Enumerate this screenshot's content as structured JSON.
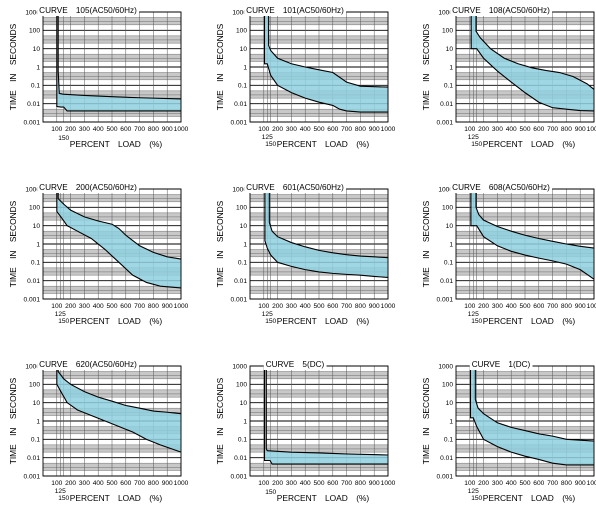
{
  "style": {
    "band_fill": "#8fd0df",
    "curve_color": "#000000",
    "grid_major": "#000000",
    "grid_minor": "#555555",
    "gray_band": "#c8c8c8"
  },
  "chart_data": [
    {
      "type": "area",
      "title": "CURVE　105(AC50/60Hz)",
      "xlabel": "PERCENT　LOAD　(%)",
      "ylabel": "TIME　IN　SECONDS",
      "yscale": "log",
      "xlim": [
        0,
        1000
      ],
      "ylim": [
        0.001,
        1000
      ],
      "x_ticks": [
        "100",
        "200",
        "300",
        "400",
        "500",
        "600",
        "700",
        "800",
        "900",
        "1000"
      ],
      "x_ticks_extra": [
        "150"
      ],
      "y_ticks": [
        "1000",
        "100",
        "10",
        "1",
        "0.1",
        "0.01",
        "0.001"
      ],
      "grid": true,
      "series": [
        {
          "role": "upper",
          "x": [
            110,
            110,
            118,
            145,
            300,
            500,
            700,
            1000
          ],
          "y": [
            1000,
            0.6,
            0.036,
            0.033,
            0.028,
            0.024,
            0.021,
            0.018
          ]
        },
        {
          "role": "lower",
          "x": [
            100,
            100,
            130,
            150,
            175,
            300,
            1000
          ],
          "y": [
            1000,
            0.007,
            0.0065,
            0.0065,
            0.004,
            0.004,
            0.004
          ]
        }
      ]
    },
    {
      "type": "area",
      "title": "CURVE　101(AC50/60Hz)",
      "xlabel": "PERCENT　LOAD　(%)",
      "ylabel": "TIME　IN　SECONDS",
      "yscale": "log",
      "xlim": [
        0,
        1000
      ],
      "ylim": [
        0.001,
        1000
      ],
      "x_ticks": [
        "100",
        "200",
        "300",
        "400",
        "500",
        "600",
        "700",
        "800",
        "900",
        "1000"
      ],
      "x_ticks_extra": [
        "125",
        "150"
      ],
      "y_ticks": [
        "1000",
        "100",
        "10",
        "1",
        "0.1",
        "0.01",
        "0.001"
      ],
      "grid": true,
      "series": [
        {
          "role": "upper",
          "x": [
            135,
            135,
            150,
            200,
            300,
            400,
            500,
            600,
            700,
            800,
            1000
          ],
          "y": [
            1000,
            15,
            8,
            3,
            1.5,
            1.0,
            0.7,
            0.5,
            0.15,
            0.09,
            0.08
          ]
        },
        {
          "role": "lower",
          "x": [
            105,
            105,
            125,
            150,
            200,
            300,
            400,
            500,
            600,
            650,
            700,
            800,
            1000
          ],
          "y": [
            1000,
            1.5,
            1.5,
            0.35,
            0.1,
            0.04,
            0.02,
            0.012,
            0.008,
            0.005,
            0.004,
            0.0035,
            0.0035
          ]
        }
      ]
    },
    {
      "type": "area",
      "title": "CURVE　108(AC50/60Hz)",
      "xlabel": "PERCENT　LOAD　(%)",
      "ylabel": "TIME　IN　SECONDS",
      "yscale": "log",
      "xlim": [
        0,
        1000
      ],
      "ylim": [
        0.001,
        1000
      ],
      "x_ticks": [
        "100",
        "200",
        "300",
        "400",
        "500",
        "600",
        "700",
        "800",
        "900",
        "1000"
      ],
      "x_ticks_extra": [
        "125",
        "150"
      ],
      "y_ticks": [
        "1000",
        "100",
        "10",
        "1",
        "0.1",
        "0.01",
        "0.001"
      ],
      "grid": true,
      "series": [
        {
          "role": "upper",
          "x": [
            145,
            145,
            175,
            250,
            350,
            450,
            550,
            650,
            750,
            850,
            950,
            1000
          ],
          "y": [
            1000,
            90,
            40,
            10,
            3,
            1.5,
            0.9,
            0.65,
            0.5,
            0.3,
            0.12,
            0.06
          ]
        },
        {
          "role": "lower",
          "x": [
            110,
            110,
            150,
            200,
            300,
            400,
            500,
            600,
            700,
            800,
            900,
            1000
          ],
          "y": [
            1000,
            10,
            10,
            3,
            0.6,
            0.15,
            0.04,
            0.012,
            0.006,
            0.005,
            0.0042,
            0.004
          ]
        }
      ]
    },
    {
      "type": "area",
      "title": "CURVE　200(AC50/60Hz)",
      "xlabel": "PERCENT　LOAD　(%)",
      "ylabel": "TIME　IN　SECONDS",
      "yscale": "log",
      "xlim": [
        0,
        1000
      ],
      "ylim": [
        0.001,
        1000
      ],
      "x_ticks": [
        "100",
        "200",
        "300",
        "400",
        "500",
        "600",
        "700",
        "800",
        "900",
        "1000"
      ],
      "x_ticks_extra": [
        "125",
        "150"
      ],
      "y_ticks": [
        "1000",
        "100",
        "10",
        "1",
        "0.1",
        "0.01",
        "0.001"
      ],
      "grid": true,
      "series": [
        {
          "role": "upper",
          "x": [
            110,
            110,
            150,
            200,
            300,
            400,
            500,
            550,
            600,
            700,
            800,
            900,
            1000
          ],
          "y": [
            1000,
            300,
            150,
            70,
            30,
            18,
            12,
            7,
            3,
            0.8,
            0.35,
            0.2,
            0.15
          ]
        },
        {
          "role": "lower",
          "x": [
            100,
            100,
            130,
            175,
            250,
            350,
            450,
            550,
            650,
            750,
            850,
            1000
          ],
          "y": [
            1000,
            60,
            30,
            10,
            5,
            2,
            0.5,
            0.1,
            0.02,
            0.008,
            0.005,
            0.004
          ]
        }
      ]
    },
    {
      "type": "area",
      "title": "CURVE　601(AC50/60Hz)",
      "xlabel": "PERCENT　LOAD　(%)",
      "ylabel": "TIME　IN　SECONDS",
      "yscale": "log",
      "xlim": [
        0,
        1000
      ],
      "ylim": [
        0.001,
        1000
      ],
      "x_ticks": [
        "100",
        "200",
        "300",
        "400",
        "500",
        "600",
        "700",
        "800",
        "900",
        "1000"
      ],
      "x_ticks_extra": [
        "125",
        "150"
      ],
      "y_ticks": [
        "1000",
        "100",
        "10",
        "1",
        "0.1",
        "0.01",
        "0.001"
      ],
      "grid": true,
      "series": [
        {
          "role": "upper",
          "x": [
            140,
            140,
            160,
            200,
            300,
            400,
            500,
            600,
            700,
            800,
            900,
            1000
          ],
          "y": [
            1000,
            15,
            5,
            2.5,
            1.2,
            0.7,
            0.45,
            0.33,
            0.26,
            0.22,
            0.2,
            0.18
          ]
        },
        {
          "role": "lower",
          "x": [
            108,
            108,
            125,
            150,
            200,
            300,
            400,
            500,
            600,
            700,
            800,
            900,
            1000
          ],
          "y": [
            1000,
            1.5,
            0.6,
            0.25,
            0.1,
            0.06,
            0.04,
            0.03,
            0.025,
            0.022,
            0.02,
            0.017,
            0.015
          ]
        }
      ]
    },
    {
      "type": "area",
      "title": "CURVE　608(AC50/60Hz)",
      "xlabel": "PERCENT　LOAD　(%)",
      "ylabel": "TIME　IN　SECONDS",
      "yscale": "log",
      "xlim": [
        0,
        1000
      ],
      "ylim": [
        0.001,
        1000
      ],
      "x_ticks": [
        "100",
        "200",
        "300",
        "400",
        "500",
        "600",
        "700",
        "800",
        "900",
        "1000"
      ],
      "x_ticks_extra": [
        "125",
        "150"
      ],
      "y_ticks": [
        "1000",
        "100",
        "10",
        "1",
        "0.1",
        "0.01",
        "0.001"
      ],
      "grid": true,
      "series": [
        {
          "role": "upper",
          "x": [
            145,
            145,
            165,
            200,
            300,
            400,
            500,
            600,
            700,
            800,
            900,
            1000
          ],
          "y": [
            1000,
            100,
            40,
            20,
            9,
            5,
            3,
            2,
            1.4,
            1,
            0.75,
            0.6
          ]
        },
        {
          "role": "lower",
          "x": [
            108,
            108,
            150,
            200,
            300,
            400,
            500,
            600,
            700,
            800,
            900,
            1000
          ],
          "y": [
            1000,
            10,
            10,
            2.5,
            0.8,
            0.4,
            0.25,
            0.17,
            0.12,
            0.08,
            0.04,
            0.012
          ]
        }
      ]
    },
    {
      "type": "area",
      "title": "CURVE　620(AC50/60Hz)",
      "xlabel": "PERCENT　LOAD　(%)",
      "ylabel": "TIME　IN　SECONDS",
      "yscale": "log",
      "xlim": [
        0,
        1000
      ],
      "ylim": [
        0.001,
        1000
      ],
      "x_ticks": [
        "100",
        "200",
        "300",
        "400",
        "500",
        "600",
        "700",
        "800",
        "900",
        "1000"
      ],
      "x_ticks_extra": [
        "125",
        "150"
      ],
      "y_ticks": [
        "1000",
        "100",
        "10",
        "1",
        "0.1",
        "0.01",
        "0.001"
      ],
      "grid": true,
      "series": [
        {
          "role": "upper",
          "x": [
            110,
            110,
            150,
            200,
            300,
            400,
            500,
            600,
            700,
            800,
            900,
            1000
          ],
          "y": [
            1000,
            500,
            200,
            100,
            40,
            20,
            12,
            7,
            5,
            3.5,
            3,
            2.5
          ]
        },
        {
          "role": "lower",
          "x": [
            100,
            100,
            130,
            175,
            250,
            350,
            450,
            550,
            650,
            750,
            850,
            1000
          ],
          "y": [
            1000,
            100,
            40,
            10,
            4,
            2,
            1,
            0.5,
            0.25,
            0.1,
            0.05,
            0.02
          ]
        }
      ]
    },
    {
      "type": "area",
      "title": "CURVE　5(DC)",
      "xlabel": "PERCENT　LOAD　(%)",
      "ylabel": "TIME　IN　SECONDS",
      "yscale": "log",
      "xlim": [
        0,
        1000
      ],
      "ylim": [
        0.001,
        1000
      ],
      "x_ticks": [
        "100",
        "200",
        "300",
        "400",
        "500",
        "600",
        "700",
        "800",
        "900",
        "1000"
      ],
      "x_ticks_extra": [
        "150"
      ],
      "y_ticks": [
        "1000",
        "100",
        "10",
        "1",
        "0.1",
        "0.01",
        "0.001"
      ],
      "grid": true,
      "series": [
        {
          "role": "upper",
          "x": [
            118,
            118,
            125,
            300,
            500,
            700,
            1000
          ],
          "y": [
            1000,
            0.03,
            0.024,
            0.02,
            0.018,
            0.016,
            0.014
          ]
        },
        {
          "role": "lower",
          "x": [
            105,
            105,
            145,
            160,
            200,
            1000
          ],
          "y": [
            1000,
            0.007,
            0.007,
            0.0045,
            0.0045,
            0.0045
          ]
        }
      ]
    },
    {
      "type": "area",
      "title": "CURVE　1(DC)",
      "xlabel": "PERCENT　LOAD　(%)",
      "ylabel": "TIME　IN　SECONDS",
      "yscale": "log",
      "xlim": [
        0,
        1000
      ],
      "ylim": [
        0.001,
        1000
      ],
      "x_ticks": [
        "100",
        "200",
        "300",
        "400",
        "500",
        "600",
        "700",
        "800",
        "900",
        "1000"
      ],
      "x_ticks_extra": [
        "125",
        "150"
      ],
      "y_ticks": [
        "1000",
        "100",
        "10",
        "1",
        "0.1",
        "0.01",
        "0.001"
      ],
      "grid": true,
      "series": [
        {
          "role": "upper",
          "x": [
            140,
            140,
            160,
            200,
            300,
            400,
            500,
            600,
            700,
            800,
            900,
            1000
          ],
          "y": [
            1000,
            15,
            5,
            2.5,
            0.8,
            0.45,
            0.3,
            0.2,
            0.15,
            0.1,
            0.09,
            0.08
          ]
        },
        {
          "role": "lower",
          "x": [
            105,
            105,
            125,
            150,
            200,
            300,
            400,
            500,
            600,
            700,
            800,
            900,
            1000
          ],
          "y": [
            1000,
            1.5,
            1.5,
            0.5,
            0.1,
            0.04,
            0.02,
            0.012,
            0.008,
            0.005,
            0.004,
            0.004,
            0.004
          ]
        }
      ]
    }
  ]
}
